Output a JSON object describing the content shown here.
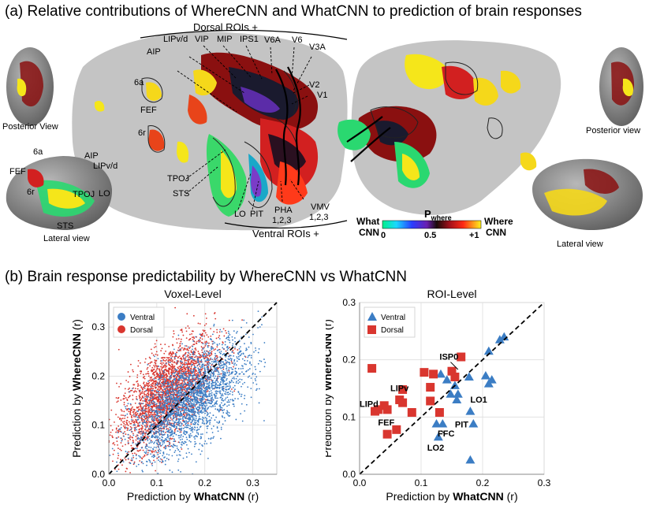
{
  "panel_a": {
    "title": "(a) Relative contributions of WhereCNN and WhatCNN to prediction of brain responses",
    "labels": {
      "dorsal_rois": "Dorsal ROIs +",
      "ventral_rois": "Ventral ROIs +",
      "posterior_view_left": "Posterior View",
      "posterior_view_right": "Posterior view",
      "lateral_view_left": "Lateral view",
      "lateral_view_right": "Lateral view",
      "lipvd": "LIPv/d",
      "vip": "VIP",
      "mip": "MIP",
      "ips1": "IPS1",
      "v6a": "V6A",
      "v6": "V6",
      "v3a": "V3A",
      "aip": "AIP",
      "v2": "V2",
      "v1": "V1",
      "six_a": "6a",
      "fef": "FEF",
      "six_r": "6r",
      "tpoj": "TPOJ",
      "sts": "STS",
      "lo": "LO",
      "pit": "PIT",
      "pha": "PHA",
      "pha_sub": "1,2,3",
      "vmv": "VMV",
      "vmv_sub": "1,2,3",
      "lat_6a": "6a",
      "lat_fef": "FEF",
      "lat_aip": "AIP",
      "lat_lipvd": "LIPv/d",
      "lat_6r": "6r",
      "lat_tpoj": "TPOJ",
      "lat_lo": "LO",
      "lat_sts": "STS"
    },
    "colorbar": {
      "left_label_1": "What",
      "left_label_2": "CNN",
      "right_label_1": "Where",
      "right_label_2": "CNN",
      "title": "P",
      "title_sub": "where",
      "tick_0": "0",
      "tick_mid": "0.5",
      "tick_1": "+1"
    }
  },
  "panel_b": {
    "title": "(b) Brain response predictability by WhereCNN vs WhatCNN"
  },
  "colors": {
    "ventral": "#3b7dc4",
    "dorsal": "#d9362f",
    "cortex": "#c4c4c4"
  },
  "chart_data": [
    {
      "type": "scatter",
      "title": "Voxel-Level",
      "xlabel_prefix": "Prediction by ",
      "xlabel_bold": "WhatCNN",
      "xlabel_suffix": " (r)",
      "ylabel_prefix": "Prediction by ",
      "ylabel_bold": "WhereCNN",
      "ylabel_suffix": " (r)",
      "xlim": [
        0,
        0.35
      ],
      "ylim": [
        0,
        0.35
      ],
      "xticks": [
        "0.0",
        "0.1",
        "0.2",
        "0.3"
      ],
      "yticks": [
        "0.0",
        "0.1",
        "0.2",
        "0.3"
      ],
      "grid": true,
      "legend_position": "top-left",
      "legend": [
        "Ventral",
        "Dorsal"
      ],
      "series": [
        {
          "name": "Ventral",
          "marker": "dot",
          "description": "dense cloud",
          "center": [
            0.17,
            0.15
          ],
          "spread": [
            0.06,
            0.045
          ],
          "slope": 0.62
        },
        {
          "name": "Dorsal",
          "marker": "dot",
          "description": "dense cloud",
          "center": [
            0.12,
            0.165
          ],
          "spread": [
            0.05,
            0.045
          ],
          "slope": 0.72
        }
      ],
      "reference_line": "y = x (dashed)"
    },
    {
      "type": "scatter",
      "title": "ROI-Level",
      "xlabel_prefix": "Prediction by ",
      "xlabel_bold": "WhatCNN",
      "xlabel_suffix": " (r)",
      "ylabel_prefix": "Prediction by ",
      "ylabel_bold": "WhereCNN",
      "ylabel_suffix": " (r)",
      "xlim": [
        0,
        0.3
      ],
      "ylim": [
        0,
        0.3
      ],
      "xticks": [
        "0.0",
        "0.1",
        "0.2",
        "0.3"
      ],
      "yticks": [
        "0.0",
        "0.1",
        "0.2",
        "0.3"
      ],
      "grid": true,
      "legend_position": "top-left",
      "legend": [
        "Ventral",
        "Dorsal"
      ],
      "series": [
        {
          "name": "Ventral",
          "marker": "triangle",
          "x": [
            0.235,
            0.228,
            0.21,
            0.215,
            0.205,
            0.21,
            0.142,
            0.178,
            0.155,
            0.16,
            0.148,
            0.158,
            0.132,
            0.18,
            0.185,
            0.125,
            0.135,
            0.128,
            0.18
          ],
          "y": [
            0.24,
            0.235,
            0.215,
            0.165,
            0.172,
            0.158,
            0.165,
            0.17,
            0.155,
            0.14,
            0.14,
            0.13,
            0.175,
            0.11,
            0.088,
            0.088,
            0.088,
            0.065,
            0.025
          ]
        },
        {
          "name": "Dorsal",
          "marker": "square",
          "x": [
            0.02,
            0.07,
            0.065,
            0.07,
            0.045,
            0.04,
            0.03,
            0.025,
            0.085,
            0.105,
            0.12,
            0.115,
            0.15,
            0.155,
            0.165,
            0.115,
            0.13,
            0.06,
            0.045
          ],
          "y": [
            0.185,
            0.148,
            0.13,
            0.125,
            0.113,
            0.12,
            0.113,
            0.11,
            0.108,
            0.178,
            0.175,
            0.128,
            0.18,
            0.17,
            0.205,
            0.152,
            0.108,
            0.078,
            0.07
          ]
        }
      ],
      "annotations": [
        "ISP0",
        "LIPv",
        "LIPd",
        "LO1",
        "FEF",
        "PIT",
        "FFC",
        "LO2"
      ],
      "reference_line": "y = x (dashed)"
    }
  ]
}
